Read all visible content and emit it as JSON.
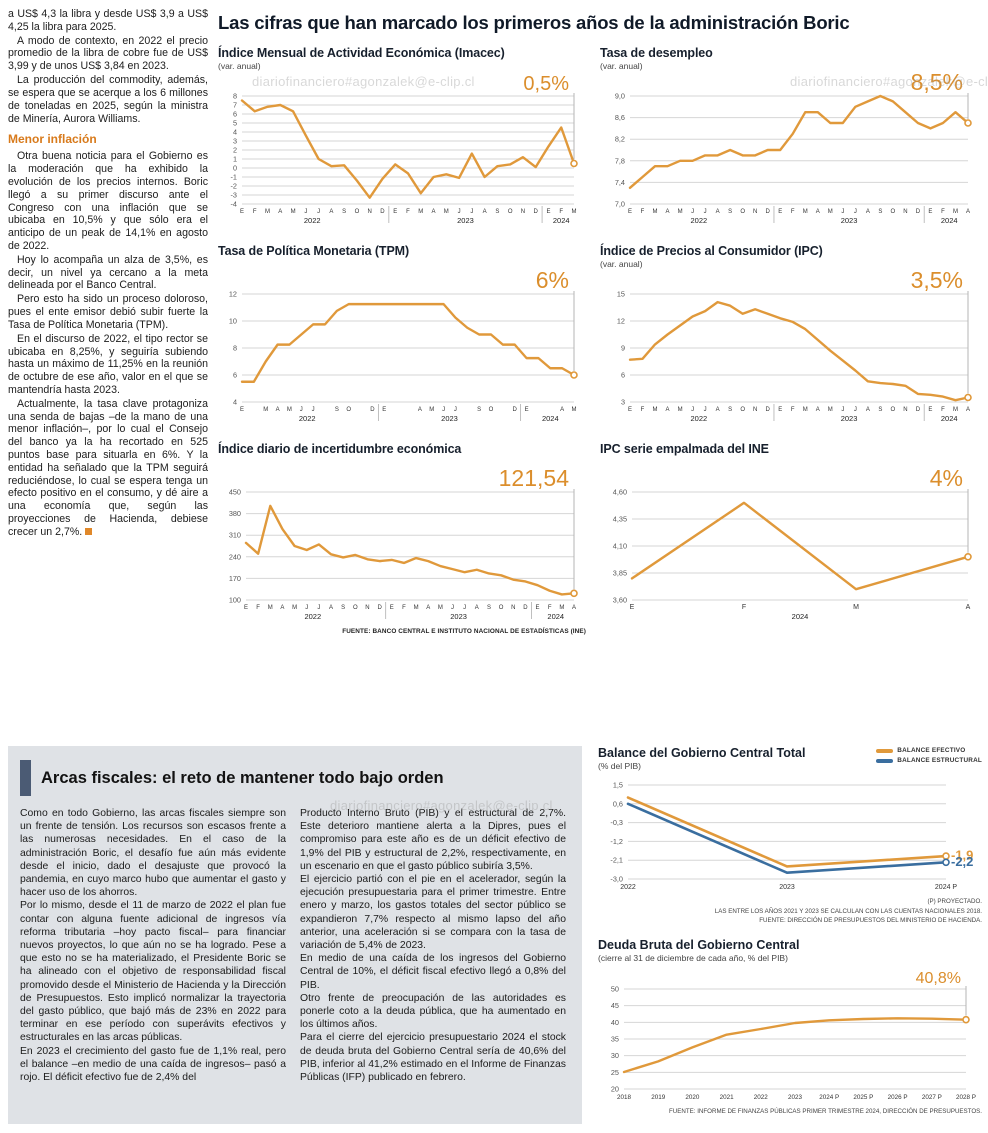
{
  "palette": {
    "orange": "#E0993B",
    "blue": "#3A6E9F",
    "callout_orange": "#DB8E2C",
    "grid": "#d6d6d6"
  },
  "watermark": "diariofinanciero#agonzalek@e-clip.cl",
  "page_title": "Las cifras que han marcado los primeros años de la administración Boric",
  "left_article": {
    "intro": [
      "a US$ 4,3 la libra y desde US$ 3,9 a US$ 4,25 la libra para 2025.",
      "A modo de contexto, en 2022 el precio promedio de la libra de cobre fue de US$ 3,99 y de unos US$ 3,84 en 2023.",
      "La producción del commodity, además, se espera que se acerque a los 6 millones de toneladas en 2025, según la ministra de Minería, Aurora Williams."
    ],
    "heading": "Menor inflación",
    "body": [
      "Otra buena noticia para el Gobierno es la moderación que ha exhibido la evolución de los precios internos. Boric llegó a su primer discurso ante el Congreso con una inflación que se ubicaba en 10,5% y que sólo era el anticipo de un peak de 14,1% en agosto de 2022.",
      "Hoy lo acompaña un alza de 3,5%, es decir, un nivel ya cercano a la meta delineada por el Banco Central.",
      "Pero esto ha sido un proceso doloroso, pues el ente emisor debió subir fuerte la Tasa de Política Monetaria (TPM).",
      "En el discurso de 2022, el tipo rector se ubicaba en 8,25%, y seguiría subiendo hasta un máximo de 11,25% en la reunión de octubre de ese año, valor en el que se mantendría hasta 2023.",
      "Actualmente, la tasa clave protagoniza una senda de bajas –de la mano de una menor inflación–, por lo cual el Consejo del banco ya la ha recortado en 525 puntos base para situarla en 6%. Y la entidad ha señalado que la TPM seguirá reduciéndose, lo cual se espera tenga un efecto positivo en el consumo, y dé aire a una economía que, según las proyecciones de Hacienda, debiese crecer un 2,7%."
    ]
  },
  "fiscal_article": {
    "title": "Arcas fiscales: el reto de mantener todo bajo orden",
    "col1": [
      "Como en todo Gobierno, las arcas fiscales siempre son un frente de tensión. Los recursos son escasos frente a las numerosas necesidades. En el caso de la administración Boric, el desafío fue aún más evidente desde el inicio, dado el desajuste que provocó la pandemia, en cuyo marco hubo que aumentar el gasto y hacer uso de los ahorros.",
      "Por lo mismo, desde el 11 de marzo de 2022 el plan fue contar con alguna fuente adicional de ingresos vía reforma tributaria –hoy pacto fiscal– para financiar nuevos proyectos, lo que aún no se ha logrado. Pese a que esto no se ha materializado, el Presidente Boric se ha alineado con el objetivo de responsabilidad fiscal promovido desde el Ministerio de Hacienda y la Dirección de Presupuestos. Esto implicó normalizar la trayectoria del gasto público, que bajó más de 23% en 2022 para terminar en ese período con superávits efectivos y estructurales en las arcas públicas.",
      "En 2023 el crecimiento del gasto fue de 1,1% real, pero el balance –en medio de una caída de ingresos– pasó a rojo. El déficit efectivo fue de 2,4% del"
    ],
    "col2": [
      "Producto Interno Bruto (PIB) y el estructural de 2,7%. Este deterioro mantiene alerta a la Dipres, pues el compromiso para este año es de un déficit efectivo de 1,9% del PIB y estructural de 2,2%, respectivamente, en un escenario en que el gasto público subiría 3,5%.",
      "El ejercicio partió con el pie en el acelerador, según la ejecución presupuestaria para el primer trimestre. Entre enero y marzo, los gastos totales del sector público se expandieron 7,7% respecto al mismo lapso del año anterior, una aceleración si se compara con la tasa de variación de 5,4% de 2023.",
      "En medio de una caída de los ingresos del Gobierno Central de 10%, el déficit fiscal efectivo llegó a 0,8% del PIB.",
      "Otro frente de preocupación de las autoridades es ponerle coto a la deuda pública, que ha aumentado en los últimos años.",
      "Para el cierre del ejercicio presupuestario 2024 el stock de deuda bruta del Gobierno Central sería de 40,6% del PIB, inferior al 41,2% estimado en el Informe de Finanzas Públicas (IFP) publicado en febrero."
    ]
  },
  "sources": {
    "top": "FUENTE: BANCO CENTRAL E INSTITUTO NACIONAL DE ESTADÍSTICAS (INE)"
  },
  "chart_data": [
    {
      "id": "imacec",
      "type": "line",
      "title": "Índice Mensual de Actividad Económica (Imacec)",
      "subtitle": "(var. anual)",
      "color": "#E0993B",
      "ccolor": "#DB8E2C",
      "callout": "0,5%",
      "ymin": -4,
      "ymax": 8,
      "yticks": [
        {
          "v": 8,
          "l": "8"
        },
        {
          "v": 7,
          "l": "7"
        },
        {
          "v": 6,
          "l": "6"
        },
        {
          "v": 5,
          "l": "5"
        },
        {
          "v": 4,
          "l": "4"
        },
        {
          "v": 3,
          "l": "3"
        },
        {
          "v": 2,
          "l": "2"
        },
        {
          "v": 1,
          "l": "1"
        },
        {
          "v": 0,
          "l": "0"
        },
        {
          "v": -1,
          "l": "-1"
        },
        {
          "v": -2,
          "l": "-2"
        },
        {
          "v": -3,
          "l": "-3"
        },
        {
          "v": -4,
          "l": "-4"
        }
      ],
      "x_labels": [
        "E",
        "F",
        "M",
        "A",
        "M",
        "J",
        "J",
        "A",
        "S",
        "O",
        "N",
        "D",
        "E",
        "F",
        "M",
        "A",
        "M",
        "J",
        "J",
        "A",
        "S",
        "O",
        "N",
        "D",
        "E",
        "F",
        "M"
      ],
      "years": [
        {
          "label": "2022",
          "from": 0,
          "to": 11
        },
        {
          "label": "2023",
          "from": 12,
          "to": 23
        },
        {
          "label": "2024",
          "from": 24,
          "to": 26
        }
      ],
      "values": [
        7.5,
        6.3,
        6.8,
        7.0,
        6.3,
        3.6,
        1.0,
        0.2,
        0.3,
        -1.4,
        -3.3,
        -1.2,
        0.4,
        -0.6,
        -2.8,
        -1.0,
        -0.7,
        -1.1,
        1.6,
        -1.0,
        0.2,
        0.4,
        1.2,
        0.1,
        2.4,
        4.5,
        0.5
      ]
    },
    {
      "id": "desempleo",
      "type": "line",
      "title": "Tasa de desempleo",
      "subtitle": "(var. anual)",
      "color": "#E0993B",
      "ccolor": "#DB8E2C",
      "callout": "8,5%",
      "ymin": 7.0,
      "ymax": 9.0,
      "yticks": [
        {
          "v": 9.0,
          "l": "9,0"
        },
        {
          "v": 8.6,
          "l": "8,6"
        },
        {
          "v": 8.2,
          "l": "8,2"
        },
        {
          "v": 7.8,
          "l": "7,8"
        },
        {
          "v": 7.4,
          "l": "7,4"
        },
        {
          "v": 7.0,
          "l": "7,0"
        }
      ],
      "x_labels": [
        "E",
        "F",
        "M",
        "A",
        "M",
        "J",
        "J",
        "A",
        "S",
        "O",
        "N",
        "D",
        "E",
        "F",
        "M",
        "A",
        "M",
        "J",
        "J",
        "A",
        "S",
        "O",
        "N",
        "D",
        "E",
        "F",
        "M",
        "A"
      ],
      "years": [
        {
          "label": "2022",
          "from": 0,
          "to": 11
        },
        {
          "label": "2023",
          "from": 12,
          "to": 23
        },
        {
          "label": "2024",
          "from": 24,
          "to": 27
        }
      ],
      "values": [
        7.3,
        7.5,
        7.7,
        7.7,
        7.8,
        7.8,
        7.9,
        7.9,
        8.0,
        7.9,
        7.9,
        8.0,
        8.0,
        8.3,
        8.7,
        8.7,
        8.5,
        8.5,
        8.8,
        8.9,
        9.0,
        8.9,
        8.7,
        8.5,
        8.4,
        8.5,
        8.7,
        8.5
      ]
    },
    {
      "id": "tpm",
      "type": "line",
      "title": "Tasa de Política Monetaria (TPM)",
      "color": "#E0993B",
      "ccolor": "#DB8E2C",
      "callout": "6%",
      "ymin": 4,
      "ymax": 12,
      "yticks": [
        {
          "v": 12,
          "l": "12"
        },
        {
          "v": 10,
          "l": "10"
        },
        {
          "v": 8,
          "l": "8"
        },
        {
          "v": 6,
          "l": "6"
        },
        {
          "v": 4,
          "l": "4"
        }
      ],
      "x_labels": [
        "E",
        "",
        "M",
        "A",
        "M",
        "J",
        "J",
        "",
        "S",
        "O",
        "",
        "D",
        "E",
        "",
        "",
        "A",
        "M",
        "J",
        "J",
        "",
        "S",
        "O",
        "",
        "D",
        "E",
        "",
        "",
        "A",
        "M"
      ],
      "years": [
        {
          "label": "2022",
          "from": 0,
          "to": 11
        },
        {
          "label": "2023",
          "from": 12,
          "to": 23
        },
        {
          "label": "2024",
          "from": 24,
          "to": 28
        }
      ],
      "values": [
        5.5,
        5.5,
        7.0,
        8.25,
        8.25,
        9.0,
        9.75,
        9.75,
        10.75,
        11.25,
        11.25,
        11.25,
        11.25,
        11.25,
        11.25,
        11.25,
        11.25,
        11.25,
        10.25,
        9.5,
        9.0,
        9.0,
        8.25,
        8.25,
        7.25,
        7.25,
        6.5,
        6.5,
        6.0
      ]
    },
    {
      "id": "ipc",
      "type": "line",
      "title": "Índice de Precios al Consumidor (IPC)",
      "subtitle": "(var. anual)",
      "color": "#E0993B",
      "ccolor": "#DB8E2C",
      "callout": "3,5%",
      "ymin": 3,
      "ymax": 15,
      "yticks": [
        {
          "v": 15,
          "l": "15"
        },
        {
          "v": 12,
          "l": "12"
        },
        {
          "v": 9,
          "l": "9"
        },
        {
          "v": 6,
          "l": "6"
        },
        {
          "v": 3,
          "l": "3"
        }
      ],
      "x_labels": [
        "E",
        "F",
        "M",
        "A",
        "M",
        "J",
        "J",
        "A",
        "S",
        "O",
        "N",
        "D",
        "E",
        "F",
        "M",
        "A",
        "M",
        "J",
        "J",
        "A",
        "S",
        "O",
        "N",
        "D",
        "E",
        "F",
        "M",
        "A"
      ],
      "years": [
        {
          "label": "2022",
          "from": 0,
          "to": 11
        },
        {
          "label": "2023",
          "from": 12,
          "to": 23
        },
        {
          "label": "2024",
          "from": 24,
          "to": 27
        }
      ],
      "values": [
        7.7,
        7.8,
        9.4,
        10.5,
        11.5,
        12.5,
        13.1,
        14.1,
        13.7,
        12.8,
        13.3,
        12.8,
        12.3,
        11.9,
        11.1,
        9.9,
        8.7,
        7.6,
        6.5,
        5.3,
        5.1,
        5.0,
        4.8,
        3.9,
        3.8,
        3.6,
        3.2,
        3.5
      ]
    },
    {
      "id": "incertidumbre",
      "type": "line",
      "title": "Índice diario de incertidumbre económica",
      "color": "#E0993B",
      "ccolor": "#DB8E2C",
      "callout": "121,54",
      "ymin": 100,
      "ymax": 450,
      "yticks": [
        {
          "v": 450,
          "l": "450"
        },
        {
          "v": 380,
          "l": "380"
        },
        {
          "v": 310,
          "l": "310"
        },
        {
          "v": 240,
          "l": "240"
        },
        {
          "v": 170,
          "l": "170"
        },
        {
          "v": 100,
          "l": "100"
        }
      ],
      "x_labels": [
        "E",
        "F",
        "M",
        "A",
        "M",
        "J",
        "J",
        "A",
        "S",
        "O",
        "N",
        "D",
        "E",
        "F",
        "M",
        "A",
        "M",
        "J",
        "J",
        "A",
        "S",
        "O",
        "N",
        "D",
        "E",
        "F",
        "M",
        "A"
      ],
      "years": [
        {
          "label": "2022",
          "from": 0,
          "to": 11
        },
        {
          "label": "2023",
          "from": 12,
          "to": 23
        },
        {
          "label": "2024",
          "from": 24,
          "to": 27
        }
      ],
      "values": [
        285,
        250,
        405,
        330,
        275,
        262,
        280,
        248,
        238,
        246,
        232,
        226,
        230,
        220,
        236,
        226,
        210,
        200,
        190,
        198,
        186,
        180,
        166,
        160,
        148,
        130,
        118,
        121.54
      ]
    },
    {
      "id": "empalmada",
      "type": "line",
      "title": "IPC serie empalmada del INE",
      "color": "#E0993B",
      "ccolor": "#DB8E2C",
      "callout": "4%",
      "ymin": 3.6,
      "ymax": 4.6,
      "yticks": [
        {
          "v": 4.6,
          "l": "4,60"
        },
        {
          "v": 4.35,
          "l": "4,35"
        },
        {
          "v": 4.1,
          "l": "4,10"
        },
        {
          "v": 3.85,
          "l": "3,85"
        },
        {
          "v": 3.6,
          "l": "3,60"
        }
      ],
      "x_labels": [
        "E",
        "F",
        "M",
        "A"
      ],
      "years": [
        {
          "label": "2024",
          "from": 0,
          "to": 3
        }
      ],
      "values": [
        3.8,
        4.5,
        3.7,
        4.0
      ]
    },
    {
      "id": "balance",
      "type": "line",
      "title": "Balance del Gobierno Central Total",
      "subtitle": "(% del PIB)",
      "ymin": -3.0,
      "ymax": 1.5,
      "yticks": [
        {
          "v": 1.5,
          "l": "1,5"
        },
        {
          "v": 0.6,
          "l": "0,6"
        },
        {
          "v": -0.3,
          "l": "-0,3"
        },
        {
          "v": -1.2,
          "l": "-1,2"
        },
        {
          "v": -2.1,
          "l": "-2,1"
        },
        {
          "v": -3.0,
          "l": "-3,0"
        }
      ],
      "x_labels": [
        "2022",
        "2023",
        "2024 P"
      ],
      "series": [
        {
          "name": "BALANCE EFECTIVO",
          "color": "#E0993B",
          "values": [
            0.9,
            -2.4,
            -1.9
          ],
          "callout": "-1,9"
        },
        {
          "name": "BALANCE ESTRUCTURAL",
          "color": "#3A6E9F",
          "values": [
            0.6,
            -2.7,
            -2.2
          ],
          "callout": "-2,2"
        }
      ],
      "notes": [
        "(P) PROYECTADO.",
        "LAS ENTRE LOS AÑOS 2021 Y 2023 SE CALCULAN CON LAS CUENTAS NACIONALES 2018.",
        "FUENTE: DIRECCIÓN DE PRESUPUESTOS DEL MINISTERIO DE HACIENDA."
      ]
    },
    {
      "id": "deuda",
      "type": "line",
      "title": "Deuda Bruta del Gobierno Central",
      "subtitle": "(cierre al 31 de diciembre de cada año, % del PIB)",
      "color": "#E0993B",
      "ccolor": "#DB8E2C",
      "callout": "40,8%",
      "ymin": 20,
      "ymax": 50,
      "yticks": [
        {
          "v": 50,
          "l": "50"
        },
        {
          "v": 45,
          "l": "45"
        },
        {
          "v": 40,
          "l": "40"
        },
        {
          "v": 35,
          "l": "35"
        },
        {
          "v": 30,
          "l": "30"
        },
        {
          "v": 25,
          "l": "25"
        },
        {
          "v": 20,
          "l": "20"
        }
      ],
      "x_labels": [
        "2018",
        "2019",
        "2020",
        "2021",
        "2022",
        "2023",
        "2024 P",
        "2025 P",
        "2026 P",
        "2027 P",
        "2028 P"
      ],
      "values": [
        25.1,
        28.3,
        32.5,
        36.3,
        38.0,
        39.8,
        40.6,
        41.0,
        41.2,
        41.1,
        40.8
      ],
      "source": "FUENTE: INFORME DE FINANZAS PÚBLICAS PRIMER TRIMESTRE 2024, DIRECCIÓN DE PRESUPUESTOS."
    }
  ]
}
